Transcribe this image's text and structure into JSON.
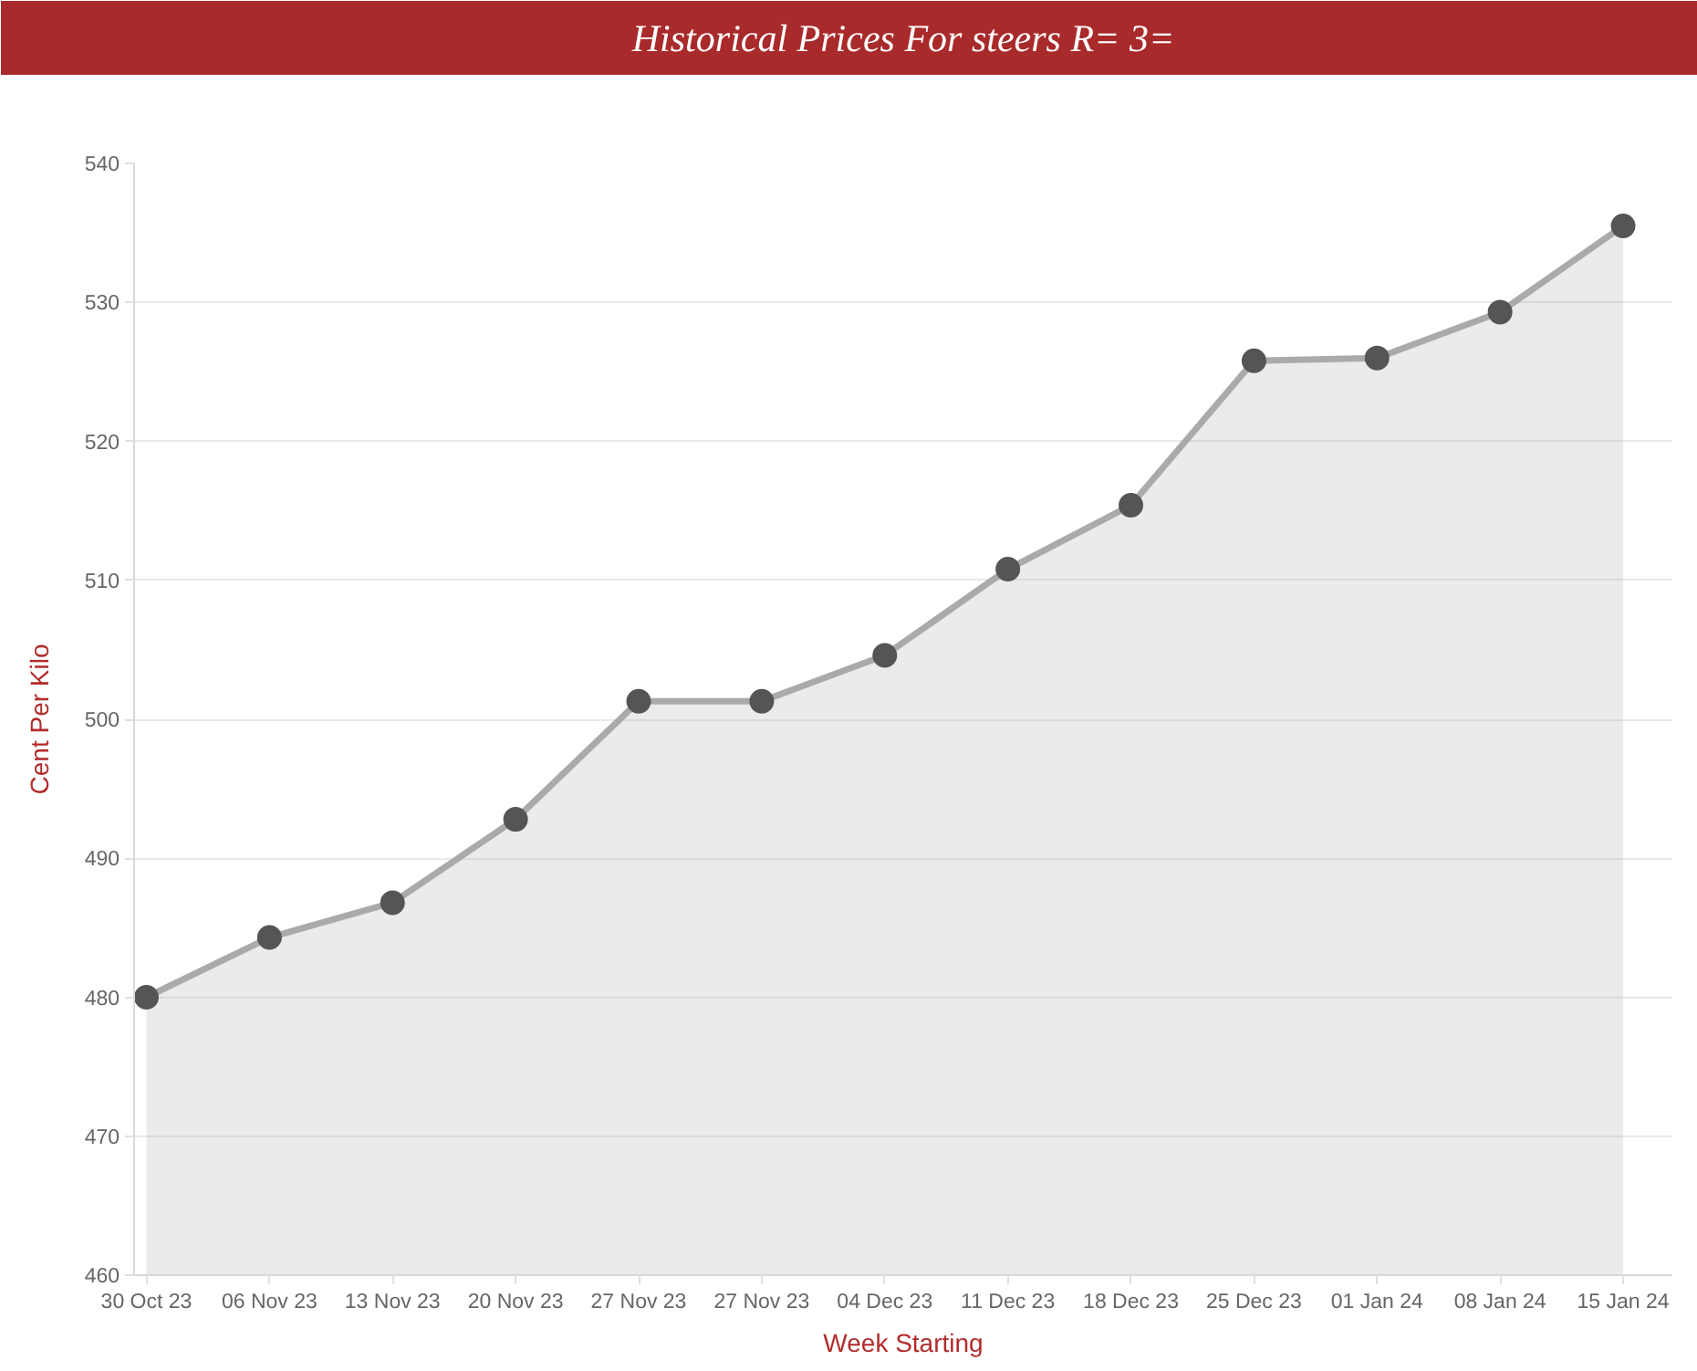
{
  "chart_data": {
    "type": "area",
    "title": "Historical Prices For steers R= 3=",
    "xlabel": "Week Starting",
    "ylabel": "Cent Per Kilo",
    "categories": [
      "30 Oct 23",
      "06 Nov 23",
      "13 Nov 23",
      "20 Nov 23",
      "27 Nov 23",
      "27 Nov 23",
      "04 Dec 23",
      "11 Dec 23",
      "18 Dec 23",
      "25 Dec 23",
      "01 Jan 24",
      "08 Jan 24",
      "15 Jan 24"
    ],
    "series": [
      {
        "color": "#aaaaaa",
        "colors": [
          "#555555",
          "#555555",
          "#555555",
          "#555555",
          "#555555",
          "#555555",
          "#555555",
          "#555555",
          "#555555",
          "#555555",
          "#555555",
          "#555555",
          "#555555"
        ],
        "values": [
          480.0,
          484.3,
          486.8,
          492.8,
          501.3,
          501.3,
          504.6,
          510.8,
          515.4,
          525.8,
          526.0,
          529.3,
          535.5
        ]
      }
    ],
    "ylim": [
      460,
      540
    ],
    "yticks": [
      460,
      470,
      480,
      490,
      500,
      510,
      520,
      530,
      540
    ],
    "grid": "y",
    "marker": "circle"
  }
}
